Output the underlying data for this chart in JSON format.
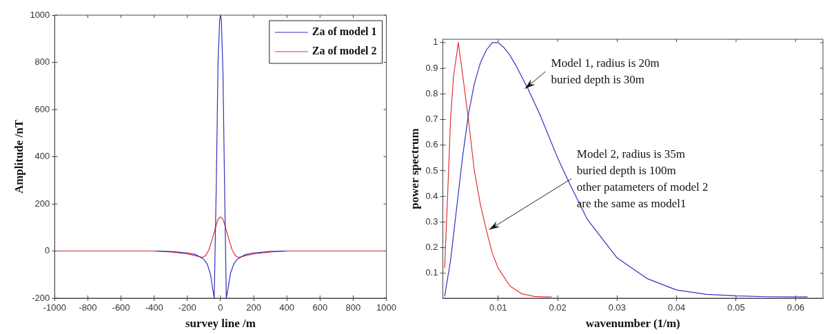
{
  "chart_data": [
    {
      "type": "line",
      "xlabel": "survey line /m",
      "ylabel": "Amplitude /nT",
      "xlim": [
        -1000,
        1000
      ],
      "ylim": [
        -200,
        1000
      ],
      "xticks": [
        -1000,
        -800,
        -600,
        -400,
        -200,
        0,
        200,
        400,
        600,
        800,
        1000
      ],
      "yticks": [
        -200,
        0,
        200,
        400,
        600,
        800,
        1000
      ],
      "grid": false,
      "legend": "top right",
      "marker": "none",
      "line_style": "solid",
      "series": [
        {
          "name": "Za of model 1",
          "color": "#3030c0",
          "x": [
            -400,
            -300,
            -200,
            -150,
            -100,
            -80,
            -60,
            -45,
            -38,
            -25,
            -15,
            -5,
            0,
            5,
            15,
            25,
            35,
            45,
            60,
            80,
            100,
            150,
            200,
            300,
            400
          ],
          "values": [
            0,
            -2,
            -8,
            -15,
            -35,
            -55,
            -100,
            -170,
            -200,
            300,
            800,
            980,
            1000,
            980,
            750,
            250,
            -200,
            -160,
            -95,
            -55,
            -35,
            -15,
            -8,
            -2,
            0
          ]
        },
        {
          "name": "Za of model 2",
          "color": "#e03030",
          "x": [
            -1000,
            -400,
            -300,
            -200,
            -150,
            -110,
            -90,
            -70,
            -50,
            -30,
            -15,
            0,
            15,
            30,
            50,
            70,
            90,
            110,
            150,
            200,
            300,
            400,
            1000
          ],
          "values": [
            0,
            0,
            -4,
            -12,
            -20,
            -27,
            -20,
            5,
            50,
            100,
            135,
            145,
            135,
            100,
            50,
            5,
            -20,
            -27,
            -20,
            -12,
            -4,
            0,
            0
          ]
        }
      ]
    },
    {
      "type": "line",
      "xlabel": "wavenumber (1/m)",
      "ylabel": "power spectrum",
      "xlim": [
        0.0007,
        0.0646
      ],
      "ylim": [
        0.003,
        1.013
      ],
      "xticks": [
        0.01,
        0.02,
        0.03,
        0.04,
        0.05,
        0.06
      ],
      "yticks": [
        0.1,
        0.2,
        0.3,
        0.4,
        0.5,
        0.6,
        0.7,
        0.8,
        0.9,
        1
      ],
      "grid": false,
      "legend": false,
      "marker": "none",
      "line_style": "solid",
      "annotations": [
        {
          "text": "Model 1, radius is 20m\nburied depth is 30m",
          "x": 0.0145,
          "y": 0.82
        },
        {
          "text": "Model 2, radius is 35m\nburied depth is 100m\nother patameters of model 2\nare the same as model1",
          "x": 0.0085,
          "y": 0.27
        }
      ],
      "series": [
        {
          "color": "#3030c0",
          "x": [
            0.001,
            0.002,
            0.003,
            0.004,
            0.005,
            0.006,
            0.007,
            0.008,
            0.009,
            0.01,
            0.011,
            0.012,
            0.013,
            0.015,
            0.017,
            0.02,
            0.022,
            0.025,
            0.03,
            0.035,
            0.04,
            0.045,
            0.05,
            0.055,
            0.06,
            0.062
          ],
          "values": [
            0.01,
            0.15,
            0.35,
            0.55,
            0.72,
            0.84,
            0.92,
            0.97,
            1.0,
            1.0,
            0.98,
            0.95,
            0.91,
            0.82,
            0.72,
            0.55,
            0.45,
            0.31,
            0.16,
            0.08,
            0.035,
            0.018,
            0.012,
            0.009,
            0.008,
            0.008
          ]
        },
        {
          "color": "#e03030",
          "x": [
            0.001,
            0.0015,
            0.002,
            0.0025,
            0.003,
            0.0033,
            0.004,
            0.005,
            0.006,
            0.007,
            0.008,
            0.009,
            0.01,
            0.012,
            0.014,
            0.016,
            0.018,
            0.019
          ],
          "values": [
            0.12,
            0.4,
            0.7,
            0.87,
            0.95,
            1.0,
            0.88,
            0.7,
            0.5,
            0.37,
            0.27,
            0.18,
            0.12,
            0.05,
            0.02,
            0.01,
            0.008,
            0.008
          ]
        }
      ]
    }
  ]
}
